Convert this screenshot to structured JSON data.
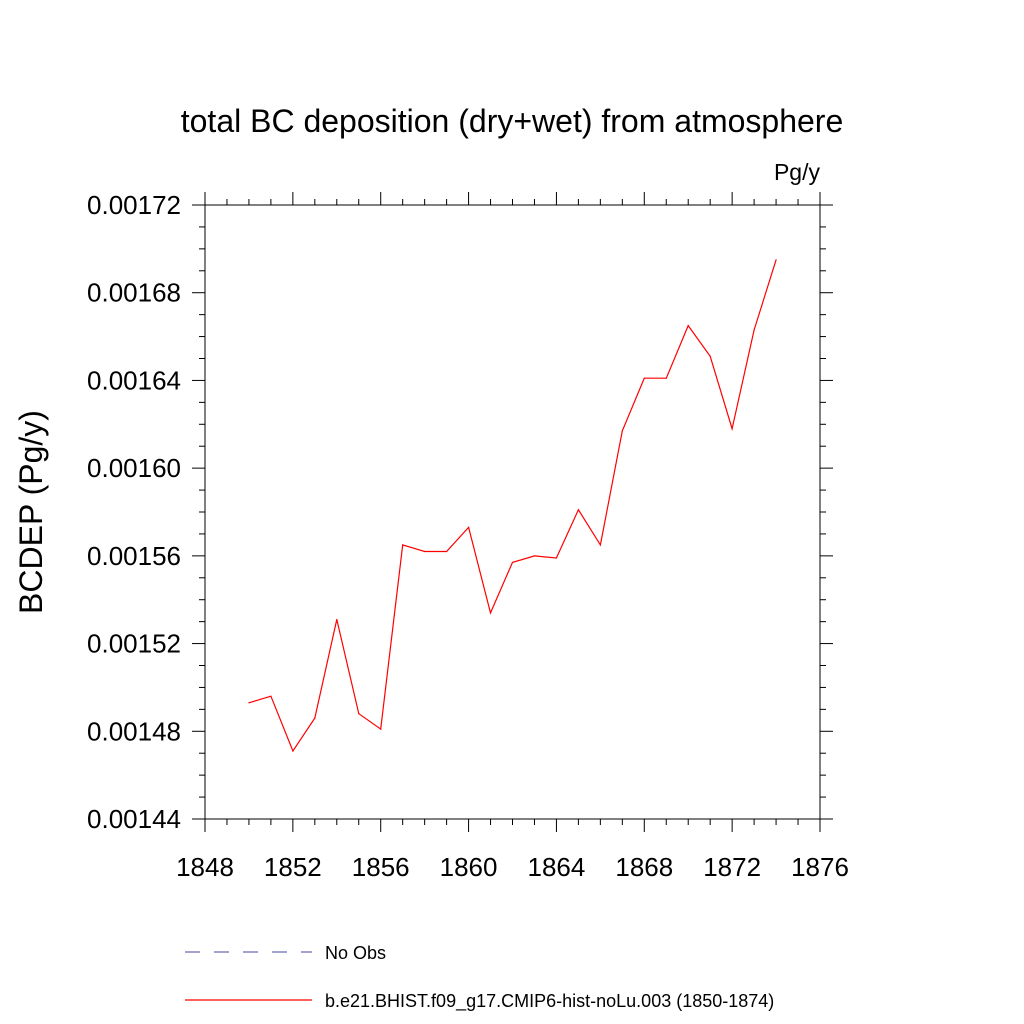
{
  "chart_data": {
    "type": "line",
    "title": "total BC deposition (dry+wet) from atmosphere",
    "units_label": "Pg/y",
    "ylabel": "BCDEP  (Pg/y)",
    "xlabel": "",
    "xlim": [
      1848,
      1876
    ],
    "ylim": [
      0.00144,
      0.00172
    ],
    "x_ticks": [
      "1848",
      "1852",
      "1856",
      "1860",
      "1864",
      "1868",
      "1872",
      "1876"
    ],
    "y_ticks": [
      "0.00144",
      "0.00148",
      "0.00152",
      "0.00156",
      "0.00160",
      "0.00164",
      "0.00168",
      "0.00172"
    ],
    "grid": false,
    "legend_position": "bottom",
    "series": [
      {
        "name": "No Obs",
        "color": "#6a6ab4",
        "style": "dashed",
        "x": [],
        "y": []
      },
      {
        "name": "b.e21.BHIST.f09_g17.CMIP6-hist-noLu.003 (1850-1874)",
        "color": "#ff0000",
        "style": "solid",
        "x": [
          1850,
          1851,
          1852,
          1853,
          1854,
          1855,
          1856,
          1857,
          1858,
          1859,
          1860,
          1861,
          1862,
          1863,
          1864,
          1865,
          1866,
          1867,
          1868,
          1869,
          1870,
          1871,
          1872,
          1873,
          1874
        ],
        "y": [
          0.001493,
          0.001496,
          0.001471,
          0.001486,
          0.001531,
          0.001488,
          0.001481,
          0.001565,
          0.001562,
          0.001562,
          0.001573,
          0.001534,
          0.001557,
          0.00156,
          0.001559,
          0.001581,
          0.001565,
          0.001617,
          0.001641,
          0.001641,
          0.001665,
          0.001651,
          0.001618,
          0.001663,
          0.001695
        ]
      }
    ]
  }
}
